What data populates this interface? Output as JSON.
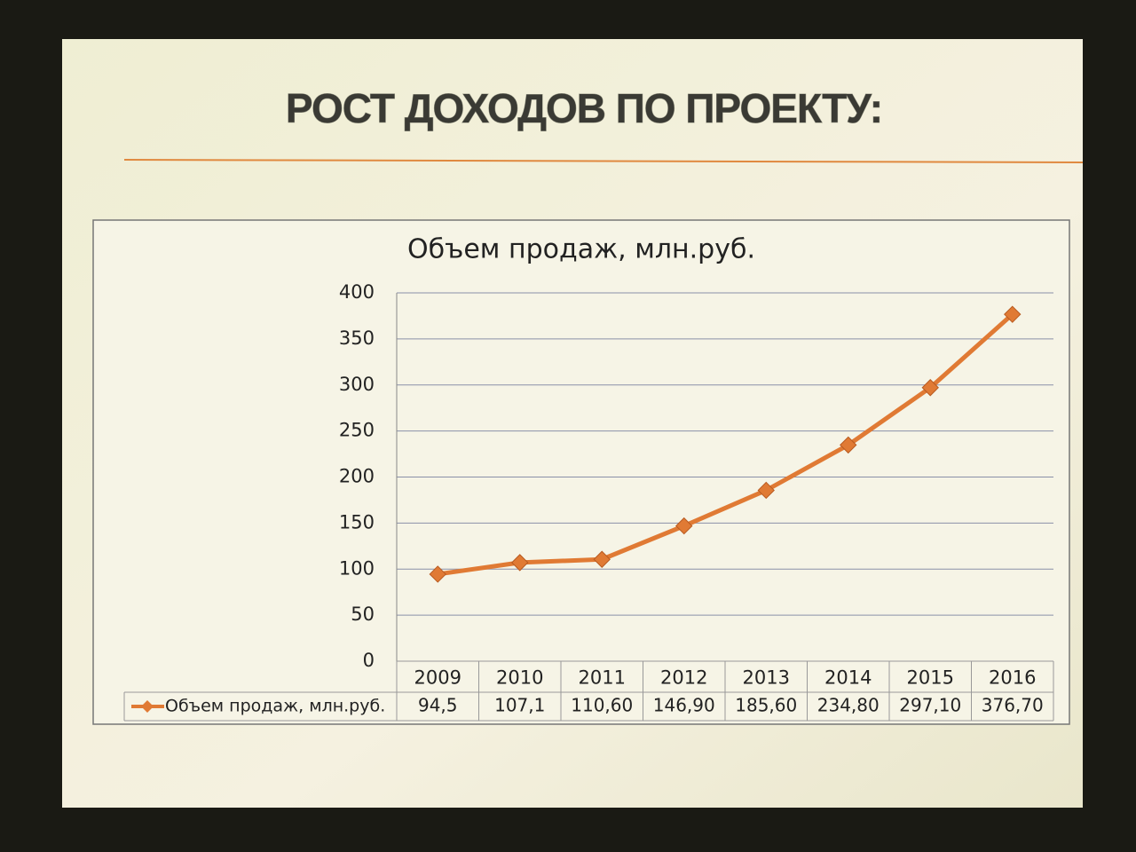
{
  "slide_title": "РОСТ ДОХОДОВ ПО ПРОЕКТУ:",
  "chart_data": {
    "type": "line",
    "title": "Объем продаж, млн.руб.",
    "categories": [
      "2009",
      "2010",
      "2011",
      "2012",
      "2013",
      "2014",
      "2015",
      "2016"
    ],
    "series": [
      {
        "name": "Объем продаж, млн.руб.",
        "color": "#e07a34",
        "values": [
          94.5,
          107.1,
          110.6,
          146.9,
          185.6,
          234.8,
          297.1,
          376.7
        ],
        "value_labels": [
          "94,5",
          "107,1",
          "110,60",
          "146,90",
          "185,60",
          "234,80",
          "297,10",
          "376,70"
        ]
      }
    ],
    "ylim": [
      0,
      400
    ],
    "yticks": [
      0,
      50,
      100,
      150,
      200,
      250,
      300,
      350,
      400
    ],
    "grid": true
  }
}
